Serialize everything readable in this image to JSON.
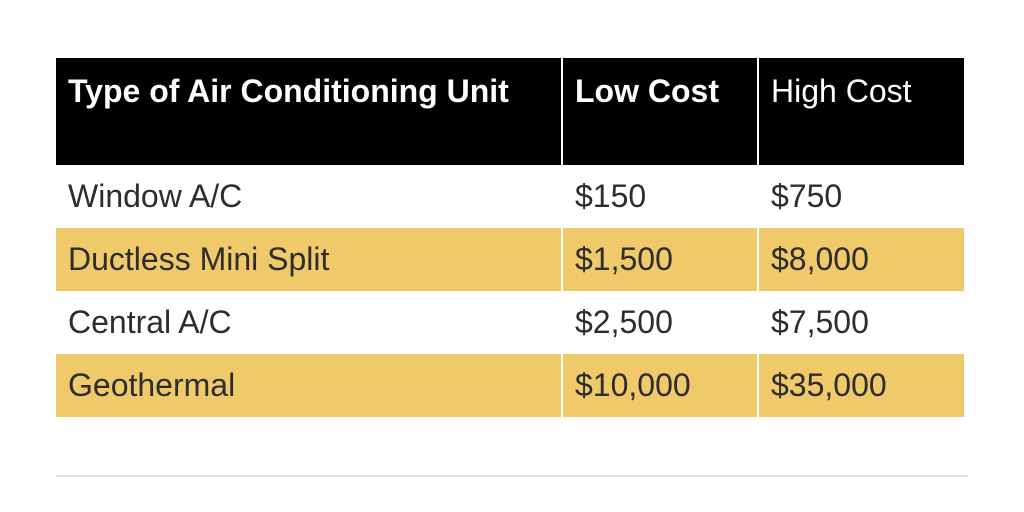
{
  "table": {
    "header": [
      "Type of Air Conditioning Unit",
      "Low Cost",
      "High Cost"
    ],
    "rows": [
      [
        "Window A/C",
        "$150",
        "$750"
      ],
      [
        "Ductless Mini Split",
        "$1,500",
        "$8,000"
      ],
      [
        "Central A/C",
        "$2,500",
        "$7,500"
      ],
      [
        "Geothermal",
        "$10,000",
        "$35,000"
      ]
    ]
  }
}
